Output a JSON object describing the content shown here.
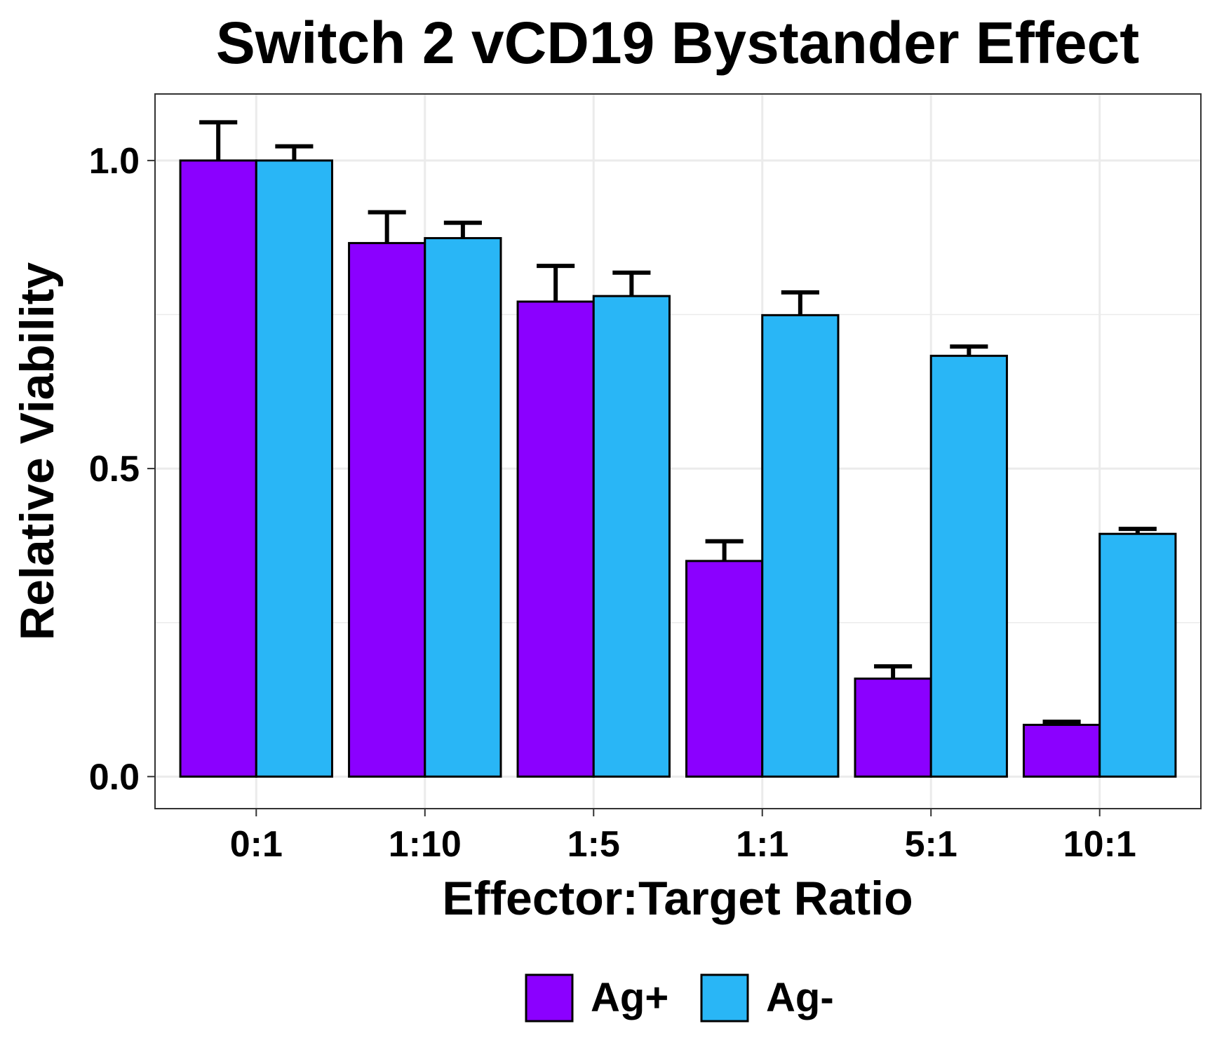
{
  "chart_data": {
    "type": "bar",
    "title": "Switch 2 vCD19 Bystander Effect",
    "xlabel": "Effector:Target Ratio",
    "ylabel": "Relative Viability",
    "categories": [
      "0:1",
      "1:10",
      "1:5",
      "1:1",
      "5:1",
      "10:1"
    ],
    "series": [
      {
        "name": "Ag+",
        "color": "#8B00FF",
        "values": [
          1.0,
          0.866,
          0.771,
          0.35,
          0.159,
          0.084
        ],
        "error": [
          0.062,
          0.05,
          0.058,
          0.032,
          0.02,
          0.005
        ]
      },
      {
        "name": "Ag-",
        "color": "#29B6F6",
        "values": [
          1.0,
          0.874,
          0.78,
          0.749,
          0.683,
          0.394
        ],
        "error": [
          0.023,
          0.025,
          0.038,
          0.037,
          0.015,
          0.008
        ]
      }
    ],
    "ylim": [
      -0.052,
      1.108
    ],
    "yticks": [
      0.0,
      0.5,
      1.0
    ],
    "ytick_labels": [
      "0.0",
      "0.5",
      "1.0"
    ],
    "grid": true,
    "legend_position": "bottom"
  }
}
